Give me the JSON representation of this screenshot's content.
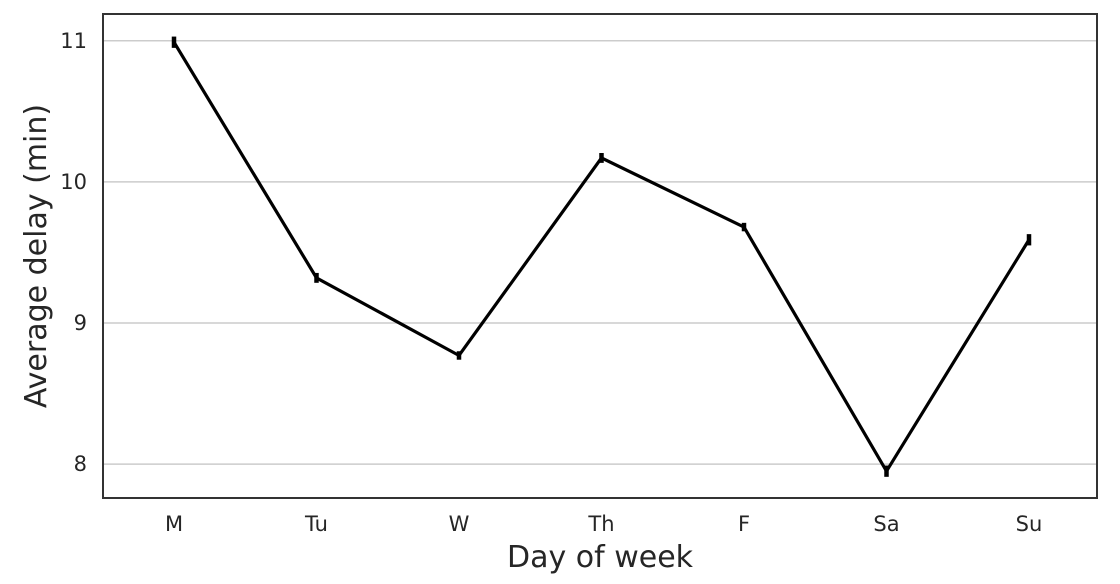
{
  "chart_data": {
    "type": "line",
    "title": "",
    "xlabel": "Day of week",
    "ylabel": "Average delay (min)",
    "categories": [
      "M",
      "Tu",
      "W",
      "Th",
      "F",
      "Sa",
      "Su"
    ],
    "series": [
      {
        "values": [
          10.99,
          9.32,
          8.77,
          10.17,
          9.68,
          7.95,
          9.59
        ],
        "error": [
          0.04,
          0.035,
          0.03,
          0.035,
          0.03,
          0.04,
          0.04
        ],
        "color": "#000000"
      }
    ],
    "ylim": [
      7.76,
      11.19
    ],
    "yticks": [
      8,
      9,
      10,
      11
    ],
    "grid": "horizontal",
    "colors": {
      "grid": "#cccccc",
      "frame": "#333333",
      "text": "#262626"
    }
  }
}
